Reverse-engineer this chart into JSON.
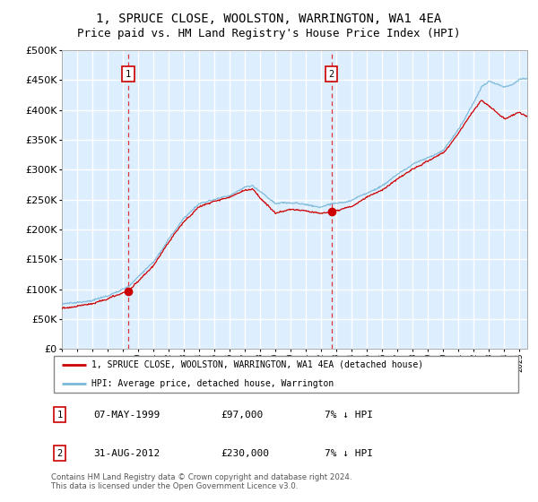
{
  "title": "1, SPRUCE CLOSE, WOOLSTON, WARRINGTON, WA1 4EA",
  "subtitle": "Price paid vs. HM Land Registry's House Price Index (HPI)",
  "ylim": [
    0,
    500000
  ],
  "xlim_start": 1995.0,
  "xlim_end": 2025.5,
  "sale1_date": 1999.36,
  "sale1_price": 97000,
  "sale2_date": 2012.67,
  "sale2_price": 230000,
  "hpi_color": "#7ab8d9",
  "price_color": "#cc0000",
  "background_color": "#ddeeff",
  "grid_color": "#ffffff",
  "legend_line1": "1, SPRUCE CLOSE, WOOLSTON, WARRINGTON, WA1 4EA (detached house)",
  "legend_line2": "HPI: Average price, detached house, Warrington",
  "table_row1": [
    "1",
    "07-MAY-1999",
    "£97,000",
    "7% ↓ HPI"
  ],
  "table_row2": [
    "2",
    "31-AUG-2012",
    "£230,000",
    "7% ↓ HPI"
  ],
  "footnote": "Contains HM Land Registry data © Crown copyright and database right 2024.\nThis data is licensed under the Open Government Licence v3.0.",
  "title_fontsize": 10,
  "subtitle_fontsize": 9,
  "hpi_keypoints": [
    [
      1995.0,
      75000
    ],
    [
      1996.0,
      78000
    ],
    [
      1997.0,
      82000
    ],
    [
      1998.0,
      90000
    ],
    [
      1999.36,
      104000
    ],
    [
      2000.0,
      120000
    ],
    [
      2001.0,
      145000
    ],
    [
      2002.0,
      185000
    ],
    [
      2003.0,
      220000
    ],
    [
      2004.0,
      245000
    ],
    [
      2005.0,
      252000
    ],
    [
      2006.0,
      258000
    ],
    [
      2007.0,
      272000
    ],
    [
      2007.5,
      275000
    ],
    [
      2008.0,
      265000
    ],
    [
      2009.0,
      245000
    ],
    [
      2010.0,
      248000
    ],
    [
      2011.0,
      245000
    ],
    [
      2012.0,
      242000
    ],
    [
      2012.67,
      248000
    ],
    [
      2013.0,
      248000
    ],
    [
      2014.0,
      255000
    ],
    [
      2015.0,
      268000
    ],
    [
      2016.0,
      280000
    ],
    [
      2017.0,
      300000
    ],
    [
      2018.0,
      318000
    ],
    [
      2019.0,
      330000
    ],
    [
      2020.0,
      342000
    ],
    [
      2021.0,
      375000
    ],
    [
      2022.0,
      420000
    ],
    [
      2022.5,
      445000
    ],
    [
      2023.0,
      455000
    ],
    [
      2023.5,
      450000
    ],
    [
      2024.0,
      445000
    ],
    [
      2024.5,
      450000
    ],
    [
      2025.0,
      460000
    ],
    [
      2025.5,
      462000
    ]
  ],
  "price_keypoints": [
    [
      1995.0,
      68000
    ],
    [
      1996.0,
      72000
    ],
    [
      1997.0,
      76000
    ],
    [
      1998.0,
      84000
    ],
    [
      1999.36,
      97000
    ],
    [
      2000.0,
      112000
    ],
    [
      2001.0,
      138000
    ],
    [
      2002.0,
      178000
    ],
    [
      2003.0,
      212000
    ],
    [
      2004.0,
      238000
    ],
    [
      2005.0,
      248000
    ],
    [
      2006.0,
      255000
    ],
    [
      2007.0,
      265000
    ],
    [
      2007.5,
      268000
    ],
    [
      2008.0,
      252000
    ],
    [
      2009.0,
      228000
    ],
    [
      2010.0,
      235000
    ],
    [
      2011.0,
      232000
    ],
    [
      2012.0,
      228000
    ],
    [
      2012.67,
      230000
    ],
    [
      2013.0,
      232000
    ],
    [
      2014.0,
      242000
    ],
    [
      2015.0,
      258000
    ],
    [
      2016.0,
      270000
    ],
    [
      2017.0,
      288000
    ],
    [
      2018.0,
      305000
    ],
    [
      2019.0,
      318000
    ],
    [
      2020.0,
      330000
    ],
    [
      2021.0,
      362000
    ],
    [
      2022.0,
      400000
    ],
    [
      2022.5,
      415000
    ],
    [
      2023.0,
      405000
    ],
    [
      2023.5,
      395000
    ],
    [
      2024.0,
      385000
    ],
    [
      2024.5,
      390000
    ],
    [
      2025.0,
      395000
    ],
    [
      2025.5,
      388000
    ]
  ]
}
